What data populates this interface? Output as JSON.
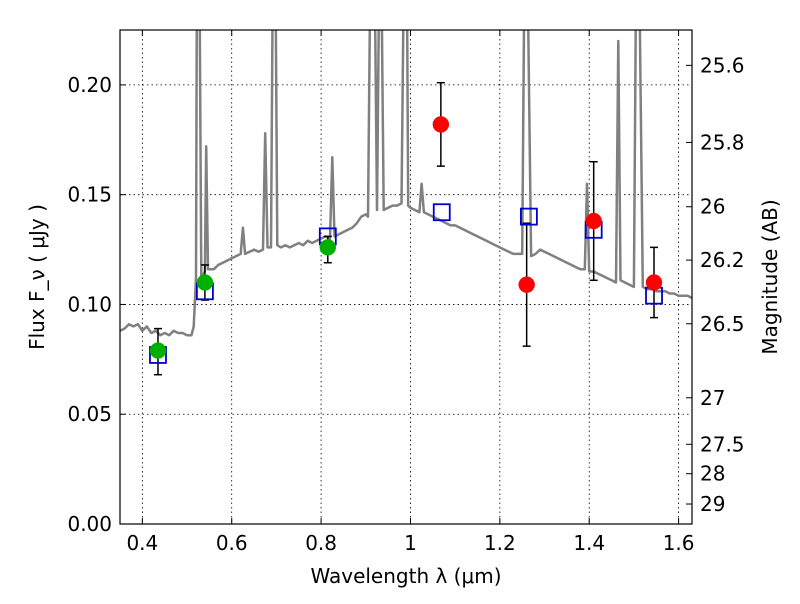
{
  "chart_data": {
    "type": "scatter",
    "xlabel": "Wavelength  λ (μm)",
    "ylabel": "Flux  F_ν  ( μJy )",
    "ylabel_right": "Magnitude (AB)",
    "xlim": [
      0.35,
      1.63
    ],
    "ylim": [
      0.0,
      0.225
    ],
    "grid": true,
    "x_ticks": [
      0.4,
      0.6,
      0.8,
      1.0,
      1.2,
      1.4,
      1.6
    ],
    "x_tick_labels": [
      "0.4",
      "0.6",
      "0.8",
      "1",
      "1.2",
      "1.4",
      "1.6"
    ],
    "y_ticks": [
      0.0,
      0.05,
      0.1,
      0.15,
      0.2
    ],
    "y_tick_labels": [
      "0.00",
      "0.05",
      "0.10",
      "0.15",
      "0.20"
    ],
    "right_ticks": [
      {
        "label": "25.6",
        "flux": 0.2089
      },
      {
        "label": "25.8",
        "flux": 0.1738
      },
      {
        "label": "26",
        "flux": 0.1445
      },
      {
        "label": "26.2",
        "flux": 0.1202
      },
      {
        "label": "26.5",
        "flux": 0.0912
      },
      {
        "label": "27",
        "flux": 0.0575
      },
      {
        "label": "27.5",
        "flux": 0.0363
      },
      {
        "label": "28",
        "flux": 0.0229
      },
      {
        "label": "29",
        "flux": 0.0091
      }
    ],
    "series": [
      {
        "kind": "line",
        "color": "#808080",
        "points": [
          [
            0.35,
            0.088
          ],
          [
            0.36,
            0.089
          ],
          [
            0.37,
            0.091
          ],
          [
            0.38,
            0.09
          ],
          [
            0.39,
            0.091
          ],
          [
            0.4,
            0.088
          ],
          [
            0.41,
            0.09
          ],
          [
            0.42,
            0.087
          ],
          [
            0.43,
            0.088
          ],
          [
            0.44,
            0.086
          ],
          [
            0.45,
            0.087
          ],
          [
            0.46,
            0.086
          ],
          [
            0.47,
            0.088
          ],
          [
            0.48,
            0.087
          ],
          [
            0.49,
            0.087
          ],
          [
            0.5,
            0.086
          ],
          [
            0.51,
            0.086
          ],
          [
            0.515,
            0.09
          ],
          [
            0.52,
            0.112
          ],
          [
            0.522,
            0.25
          ],
          [
            0.528,
            0.25
          ],
          [
            0.532,
            0.112
          ],
          [
            0.54,
            0.115
          ],
          [
            0.543,
            0.172
          ],
          [
            0.547,
            0.116
          ],
          [
            0.56,
            0.116
          ],
          [
            0.57,
            0.118
          ],
          [
            0.58,
            0.119
          ],
          [
            0.59,
            0.12
          ],
          [
            0.6,
            0.121
          ],
          [
            0.61,
            0.122
          ],
          [
            0.62,
            0.123
          ],
          [
            0.625,
            0.135
          ],
          [
            0.63,
            0.123
          ],
          [
            0.64,
            0.124
          ],
          [
            0.65,
            0.125
          ],
          [
            0.66,
            0.124
          ],
          [
            0.67,
            0.125
          ],
          [
            0.675,
            0.178
          ],
          [
            0.68,
            0.126
          ],
          [
            0.688,
            0.126
          ],
          [
            0.692,
            0.25
          ],
          [
            0.698,
            0.25
          ],
          [
            0.702,
            0.127
          ],
          [
            0.71,
            0.126
          ],
          [
            0.72,
            0.127
          ],
          [
            0.73,
            0.126
          ],
          [
            0.74,
            0.127
          ],
          [
            0.75,
            0.128
          ],
          [
            0.76,
            0.127
          ],
          [
            0.77,
            0.129
          ],
          [
            0.78,
            0.128
          ],
          [
            0.79,
            0.129
          ],
          [
            0.8,
            0.13
          ],
          [
            0.81,
            0.131
          ],
          [
            0.82,
            0.13
          ],
          [
            0.825,
            0.167
          ],
          [
            0.83,
            0.131
          ],
          [
            0.84,
            0.132
          ],
          [
            0.85,
            0.133
          ],
          [
            0.86,
            0.134
          ],
          [
            0.87,
            0.135
          ],
          [
            0.88,
            0.137
          ],
          [
            0.89,
            0.14
          ],
          [
            0.9,
            0.141
          ],
          [
            0.905,
            0.14
          ],
          [
            0.91,
            0.25
          ],
          [
            0.92,
            0.25
          ],
          [
            0.925,
            0.143
          ],
          [
            0.93,
            0.25
          ],
          [
            0.935,
            0.25
          ],
          [
            0.94,
            0.143
          ],
          [
            0.95,
            0.144
          ],
          [
            0.96,
            0.145
          ],
          [
            0.97,
            0.145
          ],
          [
            0.98,
            0.146
          ],
          [
            0.985,
            0.25
          ],
          [
            0.992,
            0.25
          ],
          [
            0.995,
            0.145
          ],
          [
            1.0,
            0.144
          ],
          [
            1.01,
            0.143
          ],
          [
            1.02,
            0.142
          ],
          [
            1.025,
            0.155
          ],
          [
            1.03,
            0.142
          ],
          [
            1.04,
            0.141
          ],
          [
            1.05,
            0.14
          ],
          [
            1.06,
            0.139
          ],
          [
            1.07,
            0.138
          ],
          [
            1.08,
            0.137
          ],
          [
            1.09,
            0.136
          ],
          [
            1.1,
            0.136
          ],
          [
            1.11,
            0.135
          ],
          [
            1.12,
            0.134
          ],
          [
            1.13,
            0.133
          ],
          [
            1.14,
            0.132
          ],
          [
            1.15,
            0.131
          ],
          [
            1.16,
            0.13
          ],
          [
            1.17,
            0.129
          ],
          [
            1.18,
            0.128
          ],
          [
            1.19,
            0.127
          ],
          [
            1.2,
            0.126
          ],
          [
            1.21,
            0.125
          ],
          [
            1.22,
            0.124
          ],
          [
            1.23,
            0.123
          ],
          [
            1.24,
            0.123
          ],
          [
            1.25,
            0.123
          ],
          [
            1.255,
            0.25
          ],
          [
            1.262,
            0.25
          ],
          [
            1.27,
            0.122
          ],
          [
            1.28,
            0.123
          ],
          [
            1.29,
            0.125
          ],
          [
            1.3,
            0.124
          ],
          [
            1.31,
            0.123
          ],
          [
            1.32,
            0.122
          ],
          [
            1.33,
            0.121
          ],
          [
            1.34,
            0.12
          ],
          [
            1.35,
            0.119
          ],
          [
            1.36,
            0.118
          ],
          [
            1.37,
            0.117
          ],
          [
            1.38,
            0.116
          ],
          [
            1.39,
            0.116
          ],
          [
            1.395,
            0.155
          ],
          [
            1.4,
            0.115
          ],
          [
            1.41,
            0.115
          ],
          [
            1.42,
            0.114
          ],
          [
            1.43,
            0.113
          ],
          [
            1.44,
            0.112
          ],
          [
            1.45,
            0.111
          ],
          [
            1.46,
            0.11
          ],
          [
            1.465,
            0.22
          ],
          [
            1.47,
            0.111
          ],
          [
            1.48,
            0.11
          ],
          [
            1.49,
            0.109
          ],
          [
            1.5,
            0.108
          ],
          [
            1.505,
            0.25
          ],
          [
            1.512,
            0.25
          ],
          [
            1.52,
            0.108
          ],
          [
            1.53,
            0.107
          ],
          [
            1.54,
            0.107
          ],
          [
            1.55,
            0.106
          ],
          [
            1.56,
            0.106
          ],
          [
            1.57,
            0.106
          ],
          [
            1.58,
            0.105
          ],
          [
            1.59,
            0.105
          ],
          [
            1.6,
            0.104
          ],
          [
            1.61,
            0.104
          ],
          [
            1.62,
            0.104
          ],
          [
            1.63,
            0.103
          ]
        ]
      },
      {
        "kind": "open-square",
        "color": "#0000cc",
        "points": [
          [
            0.435,
            0.077
          ],
          [
            0.54,
            0.106
          ],
          [
            0.815,
            0.131
          ],
          [
            1.07,
            0.142
          ],
          [
            1.265,
            0.14
          ],
          [
            1.41,
            0.134
          ],
          [
            1.545,
            0.104
          ]
        ]
      },
      {
        "kind": "filled-circle",
        "color": "#00b000",
        "points": [
          [
            0.435,
            0.079
          ],
          [
            0.54,
            0.11
          ],
          [
            0.815,
            0.126
          ]
        ],
        "errors": [
          [
            0.068,
            0.089
          ],
          [
            0.102,
            0.118
          ],
          [
            0.119,
            0.131
          ]
        ]
      },
      {
        "kind": "filled-circle",
        "color": "#ff0000",
        "points": [
          [
            1.068,
            0.182
          ],
          [
            1.26,
            0.109
          ],
          [
            1.41,
            0.138
          ],
          [
            1.545,
            0.11
          ]
        ],
        "errors": [
          [
            0.163,
            0.201
          ],
          [
            0.081,
            0.137
          ],
          [
            0.111,
            0.165
          ],
          [
            0.094,
            0.126
          ]
        ]
      }
    ]
  }
}
